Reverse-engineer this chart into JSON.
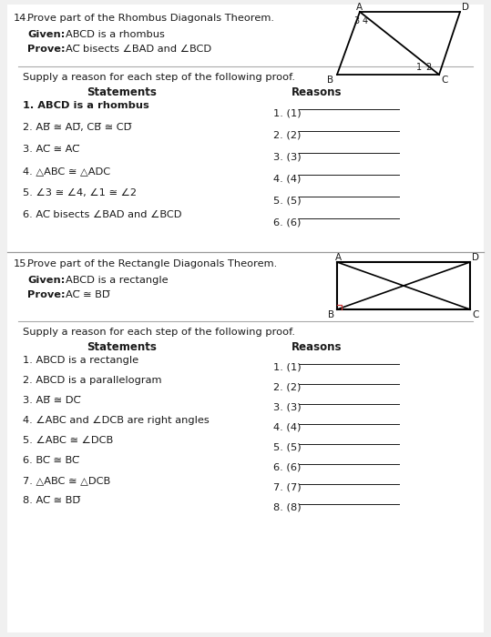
{
  "bg_color": "#f0f0f0",
  "page_bg": "#ffffff",
  "p14_number": "14.",
  "p14_title": "Prove part of the Rhombus Diagonals Theorem.",
  "p14_given_label": "Given:",
  "p14_given_text": "ABCD is a rhombus",
  "p14_prove_label": "Prove:",
  "p14_prove_text": "AC̅ bisects ∠BAD and ∠BCD",
  "p14_supply": "Supply a reason for each step of the following proof.",
  "p14_stmt_header": "Statements",
  "p14_rsn_header": "Reasons",
  "p14_statements": [
    "1. ABCD is a rhombus",
    "2. AB̅ ≅ AD̅, CB̅ ≅ CD̅",
    "3. AC̅ ≅ AC̅",
    "4. △ABC ≅ △ADC",
    "5. ∠3 ≅ ∠4, ∠1 ≅ ∠2",
    "6. AC̅ bisects ∠BAD and ∠BCD"
  ],
  "p14_reasons": [
    "1. (1)",
    "2. (2)",
    "3. (3)",
    "4. (4)",
    "5. (5)",
    "6. (6)"
  ],
  "p15_number": "15.",
  "p15_title": "Prove part of the Rectangle Diagonals Theorem.",
  "p15_given_label": "Given:",
  "p15_given_text": "ABCD is a rectangle",
  "p15_prove_label": "Prove:",
  "p15_prove_text": "AC̅ ≅ BD̅",
  "p15_supply": "Supply a reason for each step of the following proof.",
  "p15_stmt_header": "Statements",
  "p15_rsn_header": "Reasons",
  "p15_statements": [
    "1. ABCD is a rectangle",
    "2. ABCD is a parallelogram",
    "3. AB̅ ≅ DC̅",
    "4. ∠ABC and ∠DCB are right angles",
    "5. ∠ABC ≅ ∠DCB",
    "6. BC̅ ≅ BC̅",
    "7. △ABC ≅ △DCB",
    "8. AC̅ ≅ BD̅"
  ],
  "p15_reasons": [
    "1. (1)",
    "2. (2)",
    "3. (3)",
    "4. (4)",
    "5. (5)",
    "6. (6)",
    "7. (7)",
    "8. (8)"
  ]
}
